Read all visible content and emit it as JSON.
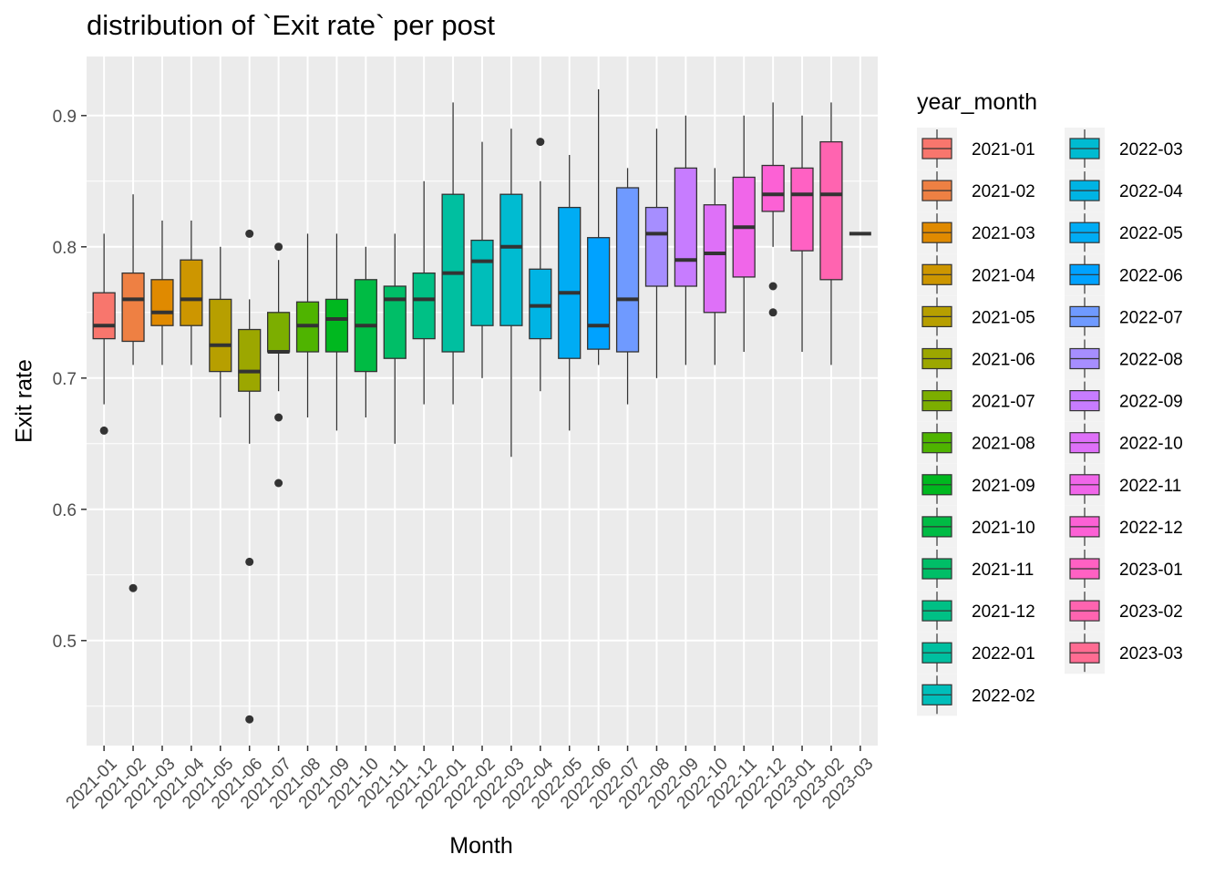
{
  "chart_data": {
    "type": "boxplot",
    "title": "distribution of `Exit rate` per post",
    "xlabel": "Month",
    "ylabel": "Exit rate",
    "ylim": [
      0.42,
      0.945
    ],
    "yticks": [
      0.5,
      0.6,
      0.7,
      0.8,
      0.9
    ],
    "ytick_labels": [
      "0.5",
      "0.6",
      "0.7",
      "0.8",
      "0.9"
    ],
    "grid": true,
    "legend_title": "year_month",
    "legend_position": "right",
    "categories": [
      "2021-01",
      "2021-02",
      "2021-03",
      "2021-04",
      "2021-05",
      "2021-06",
      "2021-07",
      "2021-08",
      "2021-09",
      "2021-10",
      "2021-11",
      "2021-12",
      "2022-01",
      "2022-02",
      "2022-03",
      "2022-04",
      "2022-05",
      "2022-06",
      "2022-07",
      "2022-08",
      "2022-09",
      "2022-10",
      "2022-11",
      "2022-12",
      "2023-01",
      "2023-02",
      "2023-03"
    ],
    "colors": [
      "#F8766D",
      "#EE8043",
      "#E08A00",
      "#CD9600",
      "#B79F00",
      "#9CA700",
      "#7CAE00",
      "#4FB400",
      "#00B81F",
      "#00BB44",
      "#00BE67",
      "#00C085",
      "#00BFA0",
      "#00BEBA",
      "#00BBD1",
      "#00B4E4",
      "#00ACF4",
      "#00A2FF",
      "#6F9AFF",
      "#A68EFF",
      "#C77CFF",
      "#DE70F8",
      "#F066E9",
      "#FC61D5",
      "#FF61C3",
      "#FF64B0",
      "#FF6C92"
    ],
    "boxes": [
      {
        "q1": 0.73,
        "median": 0.74,
        "q3": 0.765,
        "lower": 0.68,
        "upper": 0.81,
        "outliers": [
          0.66
        ]
      },
      {
        "q1": 0.728,
        "median": 0.76,
        "q3": 0.78,
        "lower": 0.71,
        "upper": 0.84,
        "outliers": [
          0.54
        ]
      },
      {
        "q1": 0.74,
        "median": 0.75,
        "q3": 0.775,
        "lower": 0.71,
        "upper": 0.82,
        "outliers": []
      },
      {
        "q1": 0.74,
        "median": 0.76,
        "q3": 0.79,
        "lower": 0.71,
        "upper": 0.82,
        "outliers": []
      },
      {
        "q1": 0.705,
        "median": 0.725,
        "q3": 0.76,
        "lower": 0.67,
        "upper": 0.8,
        "outliers": []
      },
      {
        "q1": 0.69,
        "median": 0.705,
        "q3": 0.737,
        "lower": 0.65,
        "upper": 0.76,
        "outliers": [
          0.81,
          0.56,
          0.44
        ]
      },
      {
        "q1": 0.72,
        "median": 0.72,
        "q3": 0.75,
        "lower": 0.69,
        "upper": 0.79,
        "outliers": [
          0.8,
          0.67,
          0.62
        ]
      },
      {
        "q1": 0.72,
        "median": 0.74,
        "q3": 0.758,
        "lower": 0.67,
        "upper": 0.81,
        "outliers": []
      },
      {
        "q1": 0.72,
        "median": 0.745,
        "q3": 0.76,
        "lower": 0.66,
        "upper": 0.81,
        "outliers": []
      },
      {
        "q1": 0.705,
        "median": 0.74,
        "q3": 0.775,
        "lower": 0.67,
        "upper": 0.8,
        "outliers": []
      },
      {
        "q1": 0.715,
        "median": 0.76,
        "q3": 0.77,
        "lower": 0.65,
        "upper": 0.81,
        "outliers": []
      },
      {
        "q1": 0.73,
        "median": 0.76,
        "q3": 0.78,
        "lower": 0.68,
        "upper": 0.85,
        "outliers": []
      },
      {
        "q1": 0.72,
        "median": 0.78,
        "q3": 0.84,
        "lower": 0.68,
        "upper": 0.91,
        "outliers": []
      },
      {
        "q1": 0.74,
        "median": 0.789,
        "q3": 0.805,
        "lower": 0.7,
        "upper": 0.88,
        "outliers": []
      },
      {
        "q1": 0.74,
        "median": 0.8,
        "q3": 0.84,
        "lower": 0.64,
        "upper": 0.89,
        "outliers": []
      },
      {
        "q1": 0.73,
        "median": 0.755,
        "q3": 0.783,
        "lower": 0.69,
        "upper": 0.85,
        "outliers": [
          0.88
        ]
      },
      {
        "q1": 0.715,
        "median": 0.765,
        "q3": 0.83,
        "lower": 0.66,
        "upper": 0.87,
        "outliers": []
      },
      {
        "q1": 0.722,
        "median": 0.74,
        "q3": 0.807,
        "lower": 0.71,
        "upper": 0.92,
        "outliers": []
      },
      {
        "q1": 0.72,
        "median": 0.76,
        "q3": 0.845,
        "lower": 0.68,
        "upper": 0.86,
        "outliers": []
      },
      {
        "q1": 0.77,
        "median": 0.81,
        "q3": 0.83,
        "lower": 0.7,
        "upper": 0.89,
        "outliers": []
      },
      {
        "q1": 0.77,
        "median": 0.79,
        "q3": 0.86,
        "lower": 0.71,
        "upper": 0.9,
        "outliers": []
      },
      {
        "q1": 0.75,
        "median": 0.795,
        "q3": 0.832,
        "lower": 0.71,
        "upper": 0.86,
        "outliers": []
      },
      {
        "q1": 0.777,
        "median": 0.815,
        "q3": 0.853,
        "lower": 0.72,
        "upper": 0.9,
        "outliers": []
      },
      {
        "q1": 0.827,
        "median": 0.84,
        "q3": 0.862,
        "lower": 0.8,
        "upper": 0.91,
        "outliers": [
          0.77,
          0.75
        ]
      },
      {
        "q1": 0.797,
        "median": 0.84,
        "q3": 0.86,
        "lower": 0.72,
        "upper": 0.9,
        "outliers": []
      },
      {
        "q1": 0.775,
        "median": 0.84,
        "q3": 0.88,
        "lower": 0.71,
        "upper": 0.91,
        "outliers": []
      },
      {
        "q1": 0.81,
        "median": 0.81,
        "q3": 0.81,
        "lower": 0.81,
        "upper": 0.81,
        "outliers": []
      }
    ]
  }
}
